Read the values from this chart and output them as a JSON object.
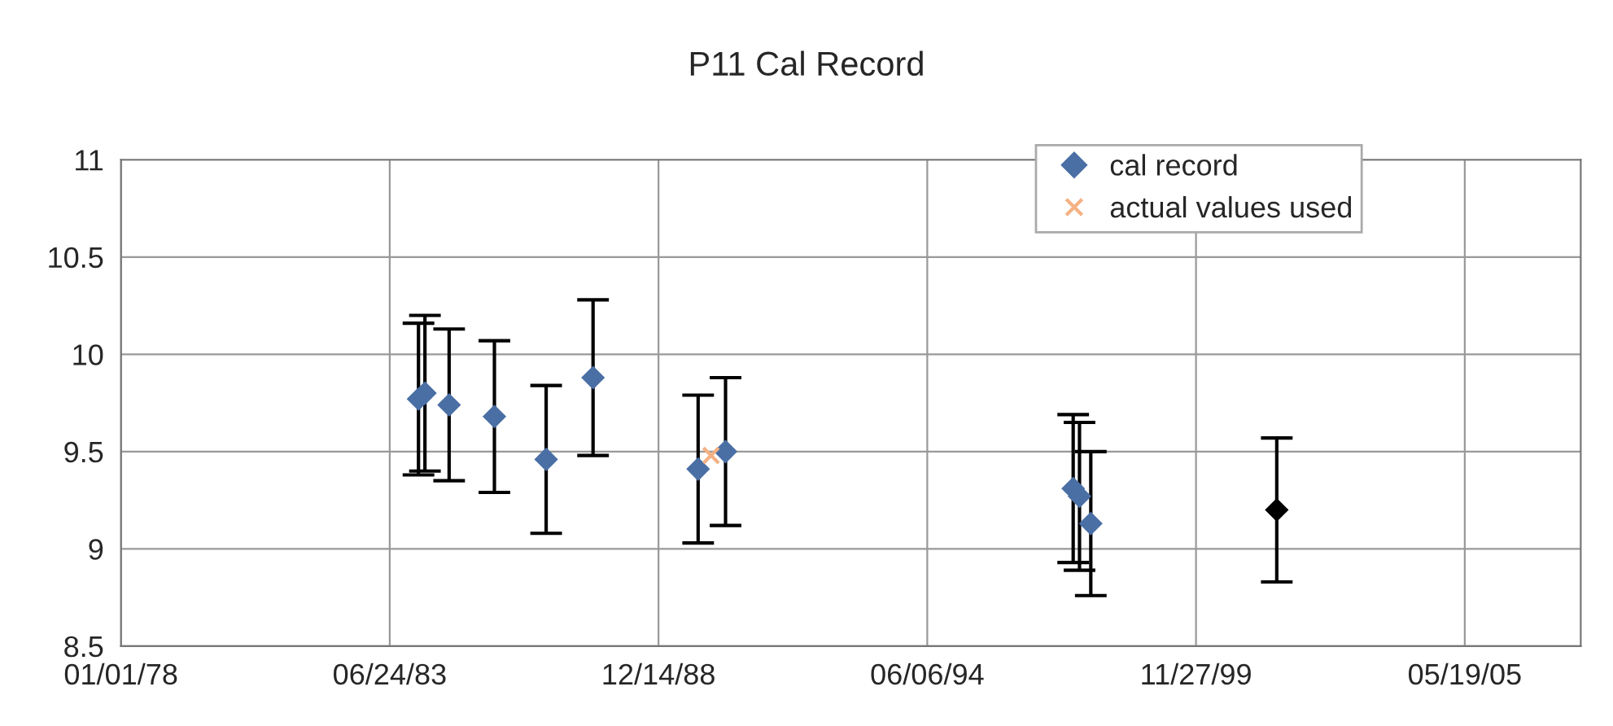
{
  "chart_data": {
    "type": "scatter",
    "title": "P11 Cal Record",
    "xlim": [
      "1978-01-01",
      "2007-09-29"
    ],
    "xticks": [
      {
        "value": "1978-01-01",
        "label": "01/01/78"
      },
      {
        "value": "1983-06-24",
        "label": "06/24/83"
      },
      {
        "value": "1988-12-14",
        "label": "12/14/88"
      },
      {
        "value": "1994-06-06",
        "label": "06/06/94"
      },
      {
        "value": "1999-11-27",
        "label": "11/27/99"
      },
      {
        "value": "2005-05-19",
        "label": "05/19/05"
      }
    ],
    "ylim": [
      8.5,
      11
    ],
    "yticks": [
      8.5,
      9,
      9.5,
      10,
      10.5,
      11
    ],
    "grid": true,
    "legend": "top right",
    "series": [
      {
        "name": "cal record",
        "color": "#4a6fa5",
        "marker": "diamond",
        "x": [
          "1984-01-24",
          "1984-03-12",
          "1984-09-08",
          "1985-08-11",
          "1986-08-31",
          "1987-08-15",
          "1989-10-05",
          "1990-04-27",
          "1997-05-27",
          "1997-07-13",
          "1997-10-05",
          "2001-07-20"
        ],
        "values": [
          9.77,
          9.8,
          9.74,
          9.68,
          9.46,
          9.88,
          9.41,
          9.5,
          9.31,
          9.27,
          9.13,
          9.2
        ],
        "errors": [
          0.39,
          0.4,
          0.39,
          0.39,
          0.38,
          0.4,
          0.38,
          0.38,
          0.38,
          0.38,
          0.37,
          0.37
        ],
        "colors": [
          "#4a6fa5",
          "#4a6fa5",
          "#4a6fa5",
          "#4a6fa5",
          "#4a6fa5",
          "#4a6fa5",
          "#4a6fa5",
          "#4a6fa5",
          "#4a6fa5",
          "#4a6fa5",
          "#4a6fa5",
          "#000000"
        ]
      },
      {
        "name": "actual values used",
        "color": "#f4b183",
        "marker": "cross",
        "x": [
          "1990-01-09"
        ],
        "values": [
          9.48
        ]
      }
    ]
  }
}
